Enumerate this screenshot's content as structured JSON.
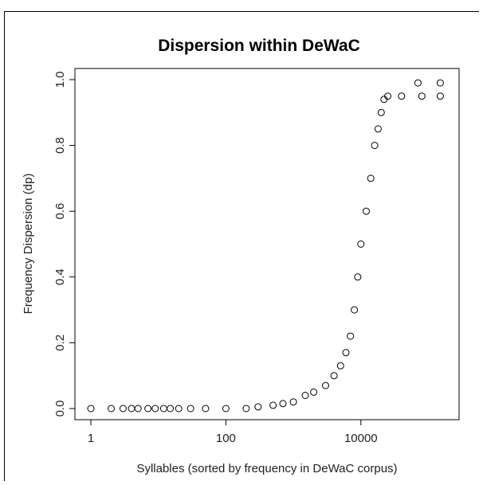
{
  "chart_data": {
    "type": "scatter",
    "title": "Dispersion within DeWaC",
    "xlabel": "Syllables (sorted by frequency in DeWaC corpus)",
    "ylabel": "Frequency Dispersion (dp)",
    "x_scale": "log",
    "xlim": [
      1,
      200000
    ],
    "ylim": [
      0,
      1.0
    ],
    "x_ticks": [
      1,
      100,
      10000
    ],
    "x_tick_labels": [
      "1",
      "100",
      "10000"
    ],
    "y_ticks": [
      0.0,
      0.2,
      0.4,
      0.6,
      0.8,
      1.0
    ],
    "y_tick_labels": [
      "0.0",
      "0.2",
      "0.4",
      "0.6",
      "0.8",
      "1.0"
    ],
    "grid": false,
    "marker": "open-circle",
    "series": [
      {
        "points": [
          [
            1,
            0.0
          ],
          [
            2,
            0.0
          ],
          [
            3,
            0.0
          ],
          [
            4,
            0.0
          ],
          [
            5,
            0.0
          ],
          [
            7,
            0.0
          ],
          [
            9,
            0.0
          ],
          [
            12,
            0.0
          ],
          [
            15,
            0.0
          ],
          [
            20,
            0.0
          ],
          [
            30,
            0.0
          ],
          [
            50,
            0.0
          ],
          [
            100,
            0.0
          ],
          [
            200,
            0.0
          ],
          [
            300,
            0.005
          ],
          [
            500,
            0.01
          ],
          [
            700,
            0.015
          ],
          [
            1000,
            0.02
          ],
          [
            1500,
            0.04
          ],
          [
            2000,
            0.05
          ],
          [
            3000,
            0.07
          ],
          [
            4000,
            0.1
          ],
          [
            5000,
            0.13
          ],
          [
            6000,
            0.17
          ],
          [
            7000,
            0.22
          ],
          [
            8000,
            0.3
          ],
          [
            9000,
            0.4
          ],
          [
            10000,
            0.5
          ],
          [
            12000,
            0.6
          ],
          [
            14000,
            0.7
          ],
          [
            16000,
            0.8
          ],
          [
            18000,
            0.85
          ],
          [
            20000,
            0.9
          ],
          [
            22000,
            0.94
          ],
          [
            25000,
            0.95
          ],
          [
            40000,
            0.95
          ],
          [
            80000,
            0.95
          ],
          [
            150000,
            0.95
          ],
          [
            70000,
            0.99
          ],
          [
            150000,
            0.99
          ]
        ]
      }
    ]
  }
}
